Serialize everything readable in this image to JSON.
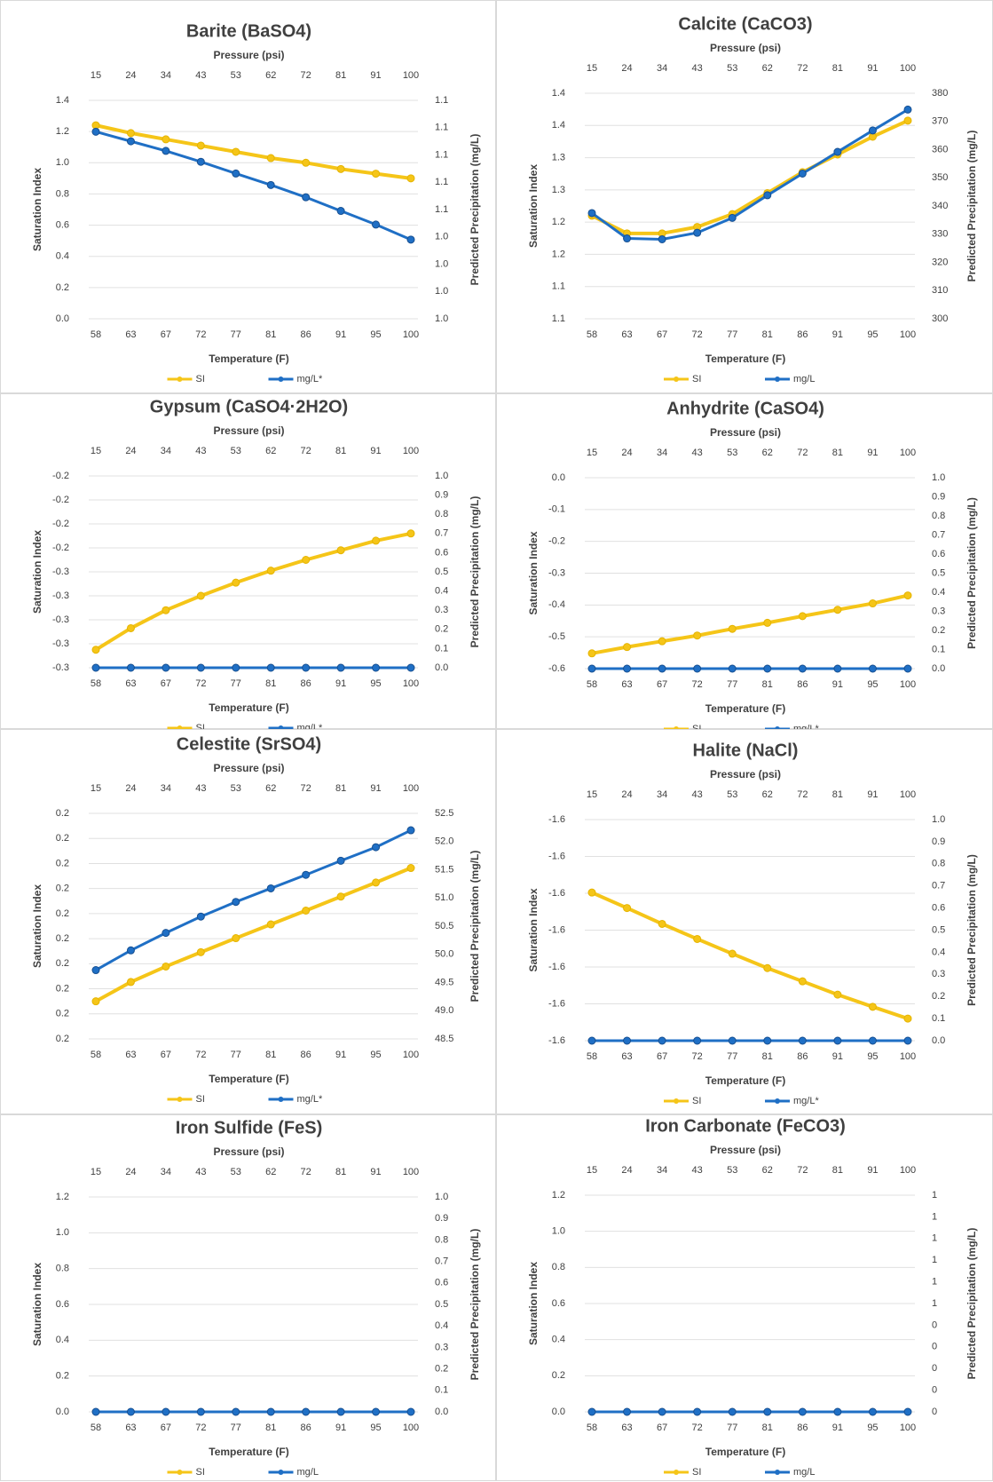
{
  "x_bottom": [
    "58",
    "63",
    "67",
    "72",
    "77",
    "81",
    "86",
    "91",
    "95",
    "100"
  ],
  "x_top": [
    "15",
    "24",
    "34",
    "43",
    "53",
    "62",
    "72",
    "81",
    "91",
    "100"
  ],
  "colors": {
    "si": "#F5C518",
    "mg": "#1F6FC5",
    "text": "#404040",
    "title": "#404040",
    "grid": "#E0E0E0"
  },
  "chart_data": [
    {
      "type": "line",
      "title": "Barite (BaSO4)",
      "xlabel": "Temperature (F)",
      "x2label": "Pressure (psi)",
      "ylabel": "Saturation Index",
      "y2label": "Predicted Precipitation (mg/L)",
      "yticks": [
        "1.4",
        "1.2",
        "1.0",
        "0.8",
        "0.6",
        "0.4",
        "0.2",
        "0.0"
      ],
      "y2ticks": [
        "1.1",
        "1.1",
        "1.1",
        "1.1",
        "1.1",
        "1.0",
        "1.0",
        "1.0",
        "1.0"
      ],
      "ylim": [
        0,
        1.4
      ],
      "y2lim": [
        0,
        8
      ],
      "series": [
        {
          "name": "SI",
          "axis": "left",
          "values": [
            1.24,
            1.19,
            1.15,
            1.11,
            1.07,
            1.03,
            1.0,
            0.96,
            0.93,
            0.9
          ]
        },
        {
          "name": "mg/L*",
          "axis": "right",
          "values": [
            6.85,
            6.5,
            6.15,
            5.75,
            5.32,
            4.9,
            4.45,
            3.95,
            3.45,
            2.9
          ]
        }
      ]
    },
    {
      "type": "line",
      "title": "Calcite (CaCO3)",
      "xlabel": "Temperature (F)",
      "x2label": "Pressure (psi)",
      "ylabel": "Saturation Index",
      "y2label": "Predicted Precipitation (mg/L)",
      "yticks": [
        "1.4",
        "1.4",
        "1.3",
        "1.3",
        "1.2",
        "1.2",
        "1.1",
        "1.1"
      ],
      "y2ticks": [
        "380",
        "370",
        "360",
        "350",
        "340",
        "330",
        "320",
        "310",
        "300"
      ],
      "ylim": [
        0,
        7
      ],
      "y2lim": [
        300,
        380
      ],
      "series": [
        {
          "name": "SI",
          "axis": "left",
          "values": [
            3.2,
            2.65,
            2.65,
            2.85,
            3.25,
            3.9,
            4.55,
            5.1,
            5.65,
            6.15
          ]
        },
        {
          "name": "mg/L",
          "axis": "right",
          "values": [
            337.5,
            328.5,
            328.2,
            330.5,
            335.8,
            343.8,
            351.5,
            359.2,
            366.8,
            374.2
          ]
        }
      ]
    },
    {
      "type": "line",
      "title": "Gypsum (CaSO4·2H2O)",
      "xlabel": "Temperature (F)",
      "x2label": "Pressure (psi)",
      "ylabel": "Saturation Index",
      "y2label": "Predicted Precipitation (mg/L)",
      "yticks": [
        "-0.2",
        "-0.2",
        "-0.2",
        "-0.2",
        "-0.3",
        "-0.3",
        "-0.3",
        "-0.3",
        "-0.3"
      ],
      "y2ticks": [
        "1.0",
        "0.9",
        "0.8",
        "0.7",
        "0.6",
        "0.5",
        "0.4",
        "0.3",
        "0.2",
        "0.1",
        "0.0"
      ],
      "ylim": [
        0,
        8
      ],
      "y2lim": [
        0,
        1
      ],
      "series": [
        {
          "name": "SI",
          "axis": "left",
          "values": [
            0.75,
            1.65,
            2.4,
            3.0,
            3.55,
            4.05,
            4.5,
            4.9,
            5.3,
            5.6
          ]
        },
        {
          "name": "mg/L*",
          "axis": "right",
          "values": [
            0,
            0,
            0,
            0,
            0,
            0,
            0,
            0,
            0,
            0
          ]
        }
      ]
    },
    {
      "type": "line",
      "title": "Anhydrite (CaSO4)",
      "xlabel": "Temperature (F)",
      "x2label": "Pressure (psi)",
      "ylabel": "Saturation Index",
      "y2label": "Predicted Precipitation (mg/L)",
      "yticks": [
        "0.0",
        "-0.1",
        "-0.2",
        "-0.3",
        "-0.4",
        "-0.5",
        "-0.6"
      ],
      "y2ticks": [
        "1.0",
        "0.9",
        "0.8",
        "0.7",
        "0.6",
        "0.5",
        "0.4",
        "0.3",
        "0.2",
        "0.1",
        "0.0"
      ],
      "ylim": [
        0,
        6
      ],
      "y2lim": [
        0,
        1
      ],
      "series": [
        {
          "name": "SI",
          "axis": "left",
          "values": [
            0.48,
            0.68,
            0.86,
            1.04,
            1.25,
            1.44,
            1.65,
            1.85,
            2.05,
            2.3
          ]
        },
        {
          "name": "mg/L*",
          "axis": "right",
          "values": [
            0,
            0,
            0,
            0,
            0,
            0,
            0,
            0,
            0,
            0
          ]
        }
      ]
    },
    {
      "type": "line",
      "title": "Celestite (SrSO4)",
      "xlabel": "Temperature (F)",
      "x2label": "Pressure (psi)",
      "ylabel": "Saturation Index",
      "y2label": "Predicted Precipitation (mg/L)",
      "yticks": [
        "0.2",
        "0.2",
        "0.2",
        "0.2",
        "0.2",
        "0.2",
        "0.2",
        "0.2",
        "0.2",
        "0.2"
      ],
      "y2ticks": [
        "52.5",
        "52.0",
        "51.5",
        "51.0",
        "50.5",
        "50.0",
        "49.5",
        "49.0",
        "48.5"
      ],
      "ylim": [
        0,
        9
      ],
      "y2lim": [
        48.5,
        52.5
      ],
      "series": [
        {
          "name": "SI",
          "axis": "left",
          "values": [
            1.5,
            2.27,
            2.89,
            3.46,
            4.02,
            4.57,
            5.12,
            5.68,
            6.24,
            6.82
          ]
        },
        {
          "name": "mg/L*",
          "axis": "right",
          "values": [
            49.72,
            50.07,
            50.38,
            50.67,
            50.93,
            51.17,
            51.41,
            51.66,
            51.9,
            52.2
          ]
        }
      ]
    },
    {
      "type": "line",
      "title": "Halite (NaCl)",
      "xlabel": "Temperature (F)",
      "x2label": "Pressure (psi)",
      "ylabel": "Saturation Index",
      "y2label": "Predicted Precipitation (mg/L)",
      "yticks": [
        "-1.6",
        "-1.6",
        "-1.6",
        "-1.6",
        "-1.6",
        "-1.6",
        "-1.6"
      ],
      "y2ticks": [
        "1.0",
        "0.9",
        "0.8",
        "0.7",
        "0.6",
        "0.5",
        "0.4",
        "0.3",
        "0.2",
        "0.1",
        "0.0"
      ],
      "ylim": [
        0,
        6
      ],
      "y2lim": [
        0,
        1
      ],
      "series": [
        {
          "name": "SI",
          "axis": "left",
          "values": [
            4.02,
            3.6,
            3.17,
            2.76,
            2.36,
            1.97,
            1.61,
            1.25,
            0.92,
            0.6
          ]
        },
        {
          "name": "mg/L*",
          "axis": "right",
          "values": [
            0,
            0,
            0,
            0,
            0,
            0,
            0,
            0,
            0,
            0
          ]
        }
      ]
    },
    {
      "type": "line",
      "title": "Iron Sulfide (FeS)",
      "xlabel": "Temperature (F)",
      "x2label": "Pressure (psi)",
      "ylabel": "Saturation Index",
      "y2label": "Predicted Precipitation (mg/L)",
      "yticks": [
        "1.2",
        "1.0",
        "0.8",
        "0.6",
        "0.4",
        "0.2",
        "0.0"
      ],
      "y2ticks": [
        "1.0",
        "0.9",
        "0.8",
        "0.7",
        "0.6",
        "0.5",
        "0.4",
        "0.3",
        "0.2",
        "0.1",
        "0.0"
      ],
      "ylim": [
        0,
        1.2
      ],
      "y2lim": [
        0,
        1
      ],
      "series": [
        {
          "name": "SI",
          "axis": "left",
          "values": []
        },
        {
          "name": "mg/L",
          "axis": "right",
          "values": [
            0,
            0,
            0,
            0,
            0,
            0,
            0,
            0,
            0,
            0
          ]
        }
      ]
    },
    {
      "type": "line",
      "title": "Iron Carbonate (FeCO3)",
      "xlabel": "Temperature (F)",
      "x2label": "Pressure (psi)",
      "ylabel": "Saturation Index",
      "y2label": "Predicted Precipitation (mg/L)",
      "yticks": [
        "1.2",
        "1.0",
        "0.8",
        "0.6",
        "0.4",
        "0.2",
        "0.0"
      ],
      "y2ticks": [
        "1",
        "1",
        "1",
        "1",
        "1",
        "1",
        "0",
        "0",
        "0",
        "0",
        "0"
      ],
      "ylim": [
        0,
        1.2
      ],
      "y2lim": [
        0,
        1
      ],
      "series": [
        {
          "name": "SI",
          "axis": "left",
          "values": []
        },
        {
          "name": "mg/L",
          "axis": "right",
          "values": [
            0,
            0,
            0,
            0,
            0,
            0,
            0,
            0,
            0,
            0
          ]
        }
      ]
    }
  ]
}
